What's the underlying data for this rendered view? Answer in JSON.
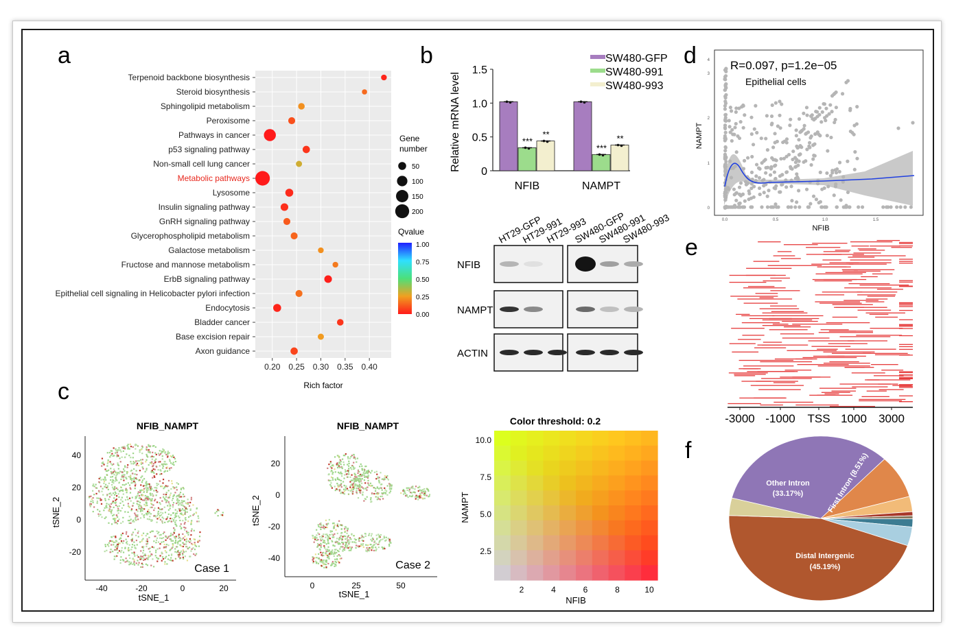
{
  "panel_letters": [
    "a",
    "b",
    "c",
    "d",
    "e",
    "f"
  ],
  "chart_data": [
    {
      "panel": "a",
      "type": "scatter",
      "categories": [
        "Terpenoid backbone biosynthesis",
        "Steroid biosynthesis",
        "Sphingolipid metabolism",
        "Peroxisome",
        "Pathways in cancer",
        "p53 signaling pathway",
        "Non-small cell lung cancer",
        "Metabolic pathways",
        "Lysosome",
        "Insulin signaling pathway",
        "GnRH signaling pathway",
        "Glycerophospholipid metabolism",
        "Galactose metabolism",
        "Fructose and mannose metabolism",
        "ErbB signaling pathway",
        "Epithelial cell signaling in Helicobacter pylori infection",
        "Endocytosis",
        "Bladder cancer",
        "Base excision repair",
        "Axon guidance"
      ],
      "highlighted_category": "Metabolic pathways",
      "highlight_color": "#e8281e",
      "points": [
        {
          "x": 0.43,
          "size": 20,
          "q": 0.02
        },
        {
          "x": 0.39,
          "size": 15,
          "q": 0.15
        },
        {
          "x": 0.26,
          "size": 30,
          "q": 0.22
        },
        {
          "x": 0.24,
          "size": 35,
          "q": 0.1
        },
        {
          "x": 0.195,
          "size": 140,
          "q": 0.0
        },
        {
          "x": 0.27,
          "size": 40,
          "q": 0.05
        },
        {
          "x": 0.255,
          "size": 25,
          "q": 0.3
        },
        {
          "x": 0.18,
          "size": 220,
          "q": 0.0
        },
        {
          "x": 0.235,
          "size": 50,
          "q": 0.03
        },
        {
          "x": 0.225,
          "size": 45,
          "q": 0.04
        },
        {
          "x": 0.23,
          "size": 35,
          "q": 0.12
        },
        {
          "x": 0.245,
          "size": 35,
          "q": 0.14
        },
        {
          "x": 0.3,
          "size": 20,
          "q": 0.22
        },
        {
          "x": 0.33,
          "size": 20,
          "q": 0.18
        },
        {
          "x": 0.315,
          "size": 45,
          "q": 0.01
        },
        {
          "x": 0.255,
          "size": 35,
          "q": 0.16
        },
        {
          "x": 0.21,
          "size": 50,
          "q": 0.02
        },
        {
          "x": 0.34,
          "size": 30,
          "q": 0.05
        },
        {
          "x": 0.3,
          "size": 25,
          "q": 0.24
        },
        {
          "x": 0.245,
          "size": 40,
          "q": 0.08
        }
      ],
      "xlabel": "Rich factor",
      "xticks": [
        "0.20",
        "0.25",
        "0.30",
        "0.35",
        "0.40"
      ],
      "xlim": [
        0.165,
        0.445
      ],
      "size_legend_title": "Gene\nnumber",
      "size_legend": [
        {
          "label": "50",
          "value": 50
        },
        {
          "label": "100",
          "value": 100
        },
        {
          "label": "150",
          "value": 150
        },
        {
          "label": "200",
          "value": 200
        }
      ],
      "color_legend_title": "Qvalue",
      "color_legend_ticks": [
        "1.00",
        "0.75",
        "0.50",
        "0.25",
        "0.00"
      ],
      "color_scale": [
        "#1f1fff",
        "#2fe0ff",
        "#4ce07a",
        "#f0a020",
        "#ff1a1a"
      ]
    },
    {
      "panel": "b",
      "type": "bar",
      "categories": [
        "NFIB",
        "NAMPT"
      ],
      "series": [
        {
          "name": "SW480-GFP",
          "color": "#a77dbf",
          "values": [
            1.02,
            1.02
          ],
          "signif": [
            "",
            ""
          ]
        },
        {
          "name": "SW480-991",
          "color": "#9cdc8c",
          "values": [
            0.34,
            0.24
          ],
          "signif": [
            "***",
            "***"
          ]
        },
        {
          "name": "SW480-993",
          "color": "#f3efcf",
          "values": [
            0.44,
            0.38
          ],
          "signif": [
            "**",
            "**"
          ]
        }
      ],
      "ylabel": "Relative mRNA level",
      "ylim": [
        0,
        1.5
      ],
      "yticks": [
        "0",
        "0.5",
        "1.0",
        "1.5"
      ]
    },
    {
      "panel": "d",
      "type": "scatter",
      "annotation": "R=0.097, p=1.2e−05",
      "subtitle": "Epithelial cells",
      "xlabel": "NFIB",
      "ylabel": "NAMPT",
      "xticks": [
        "0.0",
        "0.5",
        "1.0",
        "1.5"
      ],
      "yticks": [
        "0",
        "1",
        "2",
        "3",
        "4"
      ],
      "trend_color": "#1f3fe0"
    },
    {
      "panel": "c",
      "type": "scatter",
      "plots": [
        {
          "title": "NFIB_NAMPT",
          "label": "Case 1",
          "xlabel": "tSNE_1",
          "ylabel": "tSNE_2",
          "xticks": [
            "-40",
            "-20",
            "0",
            "20"
          ],
          "yticks": [
            "40",
            "20",
            "0",
            "-20"
          ]
        },
        {
          "title": "NFIB_NAMPT",
          "label": "Case 2",
          "xlabel": "tSNE_1",
          "ylabel": "tSNE_2",
          "xticks": [
            "0",
            "25",
            "50"
          ],
          "yticks": [
            "20",
            "0",
            "-20",
            "-40"
          ]
        }
      ]
    },
    {
      "panel": "c",
      "type": "heatmap",
      "title": "Color threshold: 0.2",
      "xlabel": "NFIB",
      "ylabel": "NAMPT",
      "xticks": [
        "2",
        "4",
        "6",
        "8",
        "10"
      ],
      "yticks": [
        "10.0",
        "7.5",
        "5.0",
        "2.5"
      ],
      "grid_size": 10
    },
    {
      "panel": "e",
      "type": "heatmap",
      "xticks": [
        "-3000",
        "-1000",
        "TSS",
        "1000",
        "3000"
      ],
      "line_color": "#e63a3a"
    },
    {
      "panel": "f",
      "type": "pie",
      "slices": [
        {
          "label": "Other Intron\n(33.17%)",
          "value": 33.17,
          "color": "#8f76b6"
        },
        {
          "label": "First Intron (8.51%)",
          "value": 8.51,
          "color": "#e0874a"
        },
        {
          "label": "",
          "value": 3.0,
          "color": "#f2bb78"
        },
        {
          "label": "",
          "value": 0.8,
          "color": "#a8382a"
        },
        {
          "label": "",
          "value": 0.6,
          "color": "#8a7a60"
        },
        {
          "label": "",
          "value": 1.6,
          "color": "#3c7c92"
        },
        {
          "label": "",
          "value": 3.7,
          "color": "#a9cfe0"
        },
        {
          "label": "Distal Intergenic\n(45.19%)",
          "value": 45.19,
          "color": "#b0572e"
        },
        {
          "label": "",
          "value": 3.43,
          "color": "#d9d09a"
        }
      ]
    }
  ],
  "blot": {
    "lanes": [
      "HT29-GFP",
      "HT29-991",
      "HT29-993",
      "SW480-GFP",
      "SW480-991",
      "SW480-993"
    ],
    "rows": [
      {
        "label": "NFIB",
        "intensity": [
          0.25,
          0.05,
          0.0,
          1.0,
          0.35,
          0.3
        ]
      },
      {
        "label": "NAMPT",
        "intensity": [
          0.85,
          0.45,
          0.0,
          0.6,
          0.2,
          0.25
        ]
      },
      {
        "label": "ACTIN",
        "intensity": [
          0.9,
          0.9,
          0.9,
          0.9,
          0.9,
          0.9
        ]
      }
    ]
  }
}
